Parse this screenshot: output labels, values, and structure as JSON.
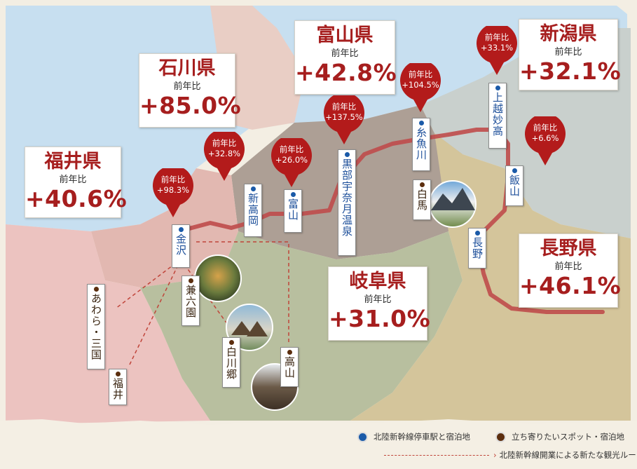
{
  "prefectures": {
    "ishikawa": {
      "name": "石川県",
      "label": "前年比",
      "value": "+85.0%"
    },
    "toyama": {
      "name": "富山県",
      "label": "前年比",
      "value": "+42.8%"
    },
    "niigata": {
      "name": "新潟県",
      "label": "前年比",
      "value": "+32.1%"
    },
    "fukui": {
      "name": "福井県",
      "label": "前年比",
      "value": "+40.6%"
    },
    "gifu": {
      "name": "岐阜県",
      "label": "前年比",
      "value": "+31.0%"
    },
    "nagano": {
      "name": "長野県",
      "label": "前年比",
      "value": "+46.1%"
    }
  },
  "station_pins": {
    "kanazawa": {
      "label": "前年比",
      "value": "+98.3%"
    },
    "shin_takaoka": {
      "label": "前年比",
      "value": "+32.8%"
    },
    "toyama": {
      "label": "前年比",
      "value": "+26.0%"
    },
    "kurobe": {
      "label": "前年比",
      "value": "+137.5%"
    },
    "itoigawa": {
      "label": "前年比",
      "value": "+104.5%"
    },
    "joetsu": {
      "label": "前年比",
      "value": "+33.1%"
    },
    "iiyama": {
      "label": "前年比",
      "value": "+6.6%"
    }
  },
  "stations": {
    "kanazawa": "金沢",
    "shin_takaoka": "新高岡",
    "toyama": "富山",
    "kurobe": "黒部宇奈月温泉",
    "itoigawa": "糸魚川",
    "joetsu": "上越妙高",
    "iiyama": "飯山",
    "nagano": "長野"
  },
  "spots": {
    "kenrokuen": "兼六園",
    "awara": "あわら・三国",
    "fukui": "福井",
    "shirakawago": "白川郷",
    "takayama": "高山",
    "hakuba": "白馬"
  },
  "legend": {
    "station": "北陸新幹線停車駅と宿泊地",
    "spot": "立ち寄りたいスポット・宿泊地",
    "route": "北陸新幹線開業による新たな観光ルート"
  },
  "colors": {
    "accent_red": "#b31b1b",
    "station_blue": "#1a5aa8",
    "spot_brown": "#5c2e0e",
    "rail": "#c0504d"
  }
}
